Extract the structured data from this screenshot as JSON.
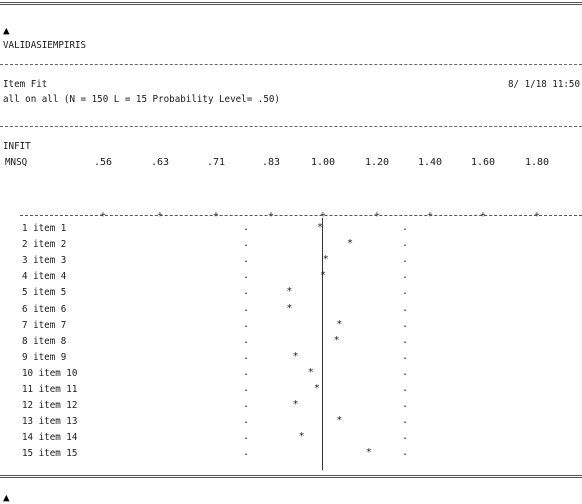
{
  "header": {
    "title": "VALIDASIEMPIRIS",
    "report_name": "Item Fit",
    "date_time": "8/ 1/18 11:50",
    "subtitle": "all on all (N = 150 L = 15 Probability Level= .50)"
  },
  "axis": {
    "label_line1": "INFIT",
    "label_line2": "MNSQ",
    "ticks": [
      ".56",
      ".63",
      ".71",
      ".83",
      "1.00",
      "1.20",
      "1.40",
      "1.60",
      "1.80"
    ],
    "tick_values": [
      0.56,
      0.63,
      0.71,
      0.83,
      1.0,
      1.2,
      1.4,
      1.6,
      1.8
    ],
    "lower_bound": 0.83,
    "upper_bound": 1.2,
    "reference": 1.0
  },
  "chart_data": {
    "type": "scatter",
    "title": "Item Fit",
    "xlabel": "INFIT MNSQ",
    "categories": [
      "1 item 1",
      "2 item 2",
      "3 item 3",
      "4 item 4",
      "5 item 5",
      "6 item 6",
      "7 item 7",
      "8 item 8",
      "9 item 9",
      "10 item 10",
      "11 item 11",
      "12 item 12",
      "13 item 13",
      "14 item 14",
      "15 item 15"
    ],
    "values": [
      0.99,
      1.1,
      1.01,
      1.0,
      0.89,
      0.89,
      1.06,
      1.05,
      0.91,
      0.96,
      0.98,
      0.91,
      1.06,
      0.93,
      1.17
    ],
    "xlim": [
      0.56,
      1.8
    ]
  },
  "footer": {
    "arrow": "▲"
  }
}
